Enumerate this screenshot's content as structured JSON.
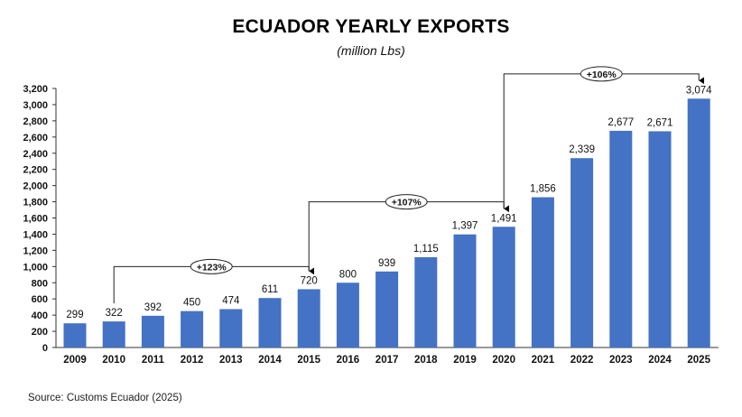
{
  "chart_data": {
    "type": "bar",
    "title": "ECUADOR YEARLY EXPORTS",
    "subtitle": "(million Lbs)",
    "source": "Source: Customs Ecuador (2025)",
    "categories": [
      "2009",
      "2010",
      "2011",
      "2012",
      "2013",
      "2014",
      "2015",
      "2016",
      "2017",
      "2018",
      "2019",
      "2020",
      "2021",
      "2022",
      "2023",
      "2024",
      "2025"
    ],
    "values": [
      299,
      322,
      392,
      450,
      474,
      611,
      720,
      800,
      939,
      1115,
      1397,
      1491,
      1856,
      2339,
      2677,
      2671,
      3074
    ],
    "data_labels": [
      "299",
      "322",
      "392",
      "450",
      "474",
      "611",
      "720",
      "800",
      "939",
      "1,115",
      "1,397",
      "1,491",
      "1,856",
      "2,339",
      "2,677",
      "2,671",
      "3,074"
    ],
    "ylim": [
      0,
      3200
    ],
    "yticks": [
      0,
      200,
      400,
      600,
      800,
      1000,
      1200,
      1400,
      1600,
      1800,
      2000,
      2200,
      2400,
      2600,
      2800,
      3000,
      3200
    ],
    "ytick_labels": [
      "0",
      "200",
      "400",
      "600",
      "800",
      "1,000",
      "1,200",
      "1,400",
      "1,600",
      "1,800",
      "2,000",
      "2,200",
      "2,400",
      "2,600",
      "2,800",
      "3,000",
      "3,200"
    ],
    "grid": false,
    "bar_color": "#4472C4",
    "annotations": [
      {
        "from": "2010",
        "to": "2015",
        "label": "+123%",
        "level": 1000
      },
      {
        "from": "2015",
        "to": "2020",
        "label": "+107%",
        "level": 1800
      },
      {
        "from": "2020",
        "to": "2025",
        "label": "+106%",
        "level": 3380
      }
    ]
  }
}
